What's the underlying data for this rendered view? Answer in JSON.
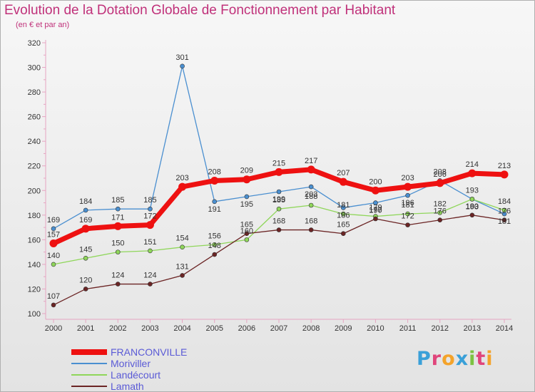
{
  "title": "Evolution de la Dotation Globale de Fonctionnement par Habitant",
  "subtitle": "(en € et par an)",
  "logo": "Proxiti",
  "chart_data": {
    "type": "line",
    "title": "Evolution de la Dotation Globale de Fonctionnement par Habitant",
    "subtitle": "(en € et par an)",
    "x": [
      2000,
      2001,
      2002,
      2003,
      2004,
      2005,
      2006,
      2007,
      2008,
      2009,
      2010,
      2011,
      2012,
      2013,
      2014
    ],
    "ylim": [
      100,
      320
    ],
    "yticks": [
      100,
      120,
      140,
      160,
      180,
      200,
      220,
      240,
      260,
      280,
      300,
      320
    ],
    "grid": false,
    "legend": "bottom-left",
    "series": [
      {
        "name": "FRANCONVILLE",
        "color": "#ee1111",
        "values": [
          157,
          169,
          171,
          172,
          203,
          208,
          209,
          215,
          217,
          207,
          200,
          203,
          206,
          214,
          213
        ]
      },
      {
        "name": "Moriviller",
        "color": "#4a8fd0",
        "values": [
          169,
          184,
          185,
          185,
          301,
          191,
          195,
          199,
          203,
          186,
          190,
          196,
          208,
          193,
          181
        ]
      },
      {
        "name": "Landécourt",
        "color": "#8fd65a",
        "values": [
          140,
          145,
          150,
          151,
          154,
          156,
          160,
          185,
          188,
          181,
          179,
          181,
          182,
          193,
          184
        ]
      },
      {
        "name": "Lamath",
        "color": "#6b2424",
        "values": [
          107,
          120,
          124,
          124,
          131,
          148,
          165,
          168,
          168,
          165,
          177,
          172,
          176,
          180,
          176
        ]
      }
    ]
  }
}
